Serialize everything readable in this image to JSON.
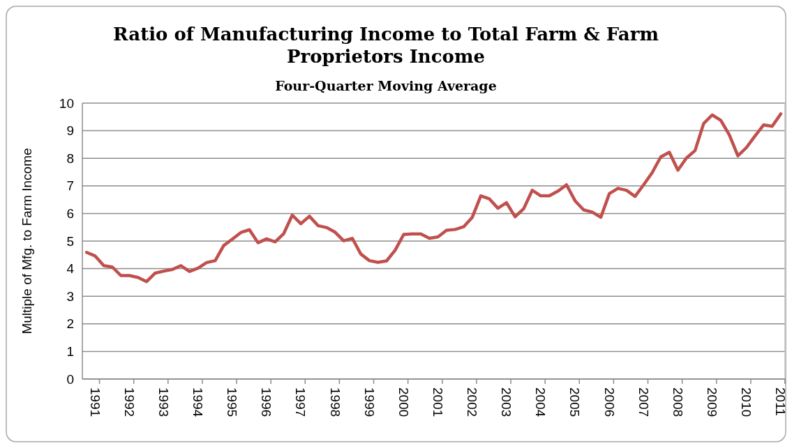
{
  "chart_data": {
    "type": "line",
    "title": "Ratio of Manufacturing Income to Total Farm & Farm Proprietors Income",
    "subtitle": "Four-Quarter Moving Average",
    "ylabel": "Multiple of Mfg. to Farm Income",
    "categories": [
      null,
      "1991",
      null,
      null,
      null,
      "1992",
      null,
      null,
      null,
      "1993",
      null,
      null,
      null,
      "1994",
      null,
      null,
      null,
      "1995",
      null,
      null,
      null,
      "1996",
      null,
      null,
      null,
      "1997",
      null,
      null,
      null,
      "1998",
      null,
      null,
      null,
      "1999",
      null,
      null,
      null,
      "2000",
      null,
      null,
      null,
      "2001",
      null,
      null,
      null,
      "2002",
      null,
      null,
      null,
      "2003",
      null,
      null,
      null,
      "2004",
      null,
      null,
      null,
      "2005",
      null,
      null,
      null,
      "2006",
      null,
      null,
      null,
      "2007",
      null,
      null,
      null,
      "2008",
      null,
      null,
      null,
      "2009",
      null,
      null,
      null,
      "2010",
      null,
      null,
      null,
      "2011"
    ],
    "series": [
      {
        "color": "#c0504d",
        "values": [
          4.59,
          4.46,
          4.11,
          4.06,
          3.75,
          3.75,
          3.68,
          3.53,
          3.84,
          3.91,
          3.97,
          4.11,
          3.9,
          4.02,
          4.22,
          4.29,
          4.84,
          5.07,
          5.31,
          5.41,
          4.94,
          5.08,
          4.97,
          5.27,
          5.94,
          5.63,
          5.9,
          5.56,
          5.49,
          5.32,
          5.01,
          5.1,
          4.53,
          4.29,
          4.23,
          4.28,
          4.67,
          5.24,
          5.26,
          5.26,
          5.1,
          5.15,
          5.39,
          5.42,
          5.52,
          5.86,
          6.64,
          6.53,
          6.19,
          6.39,
          5.88,
          6.17,
          6.84,
          6.64,
          6.64,
          6.81,
          7.04,
          6.46,
          6.13,
          6.05,
          5.86,
          6.72,
          6.91,
          6.84,
          6.62,
          7.04,
          7.48,
          8.05,
          8.22,
          7.57,
          8.01,
          8.28,
          9.26,
          9.57,
          9.38,
          8.85,
          8.09,
          8.39,
          8.81,
          9.21,
          9.16,
          9.61
        ]
      }
    ],
    "ylim": [
      0,
      10
    ],
    "yticks": [
      0,
      1,
      2,
      3,
      4,
      5,
      6,
      7,
      8,
      9,
      10
    ],
    "grid": "y",
    "marker": "none",
    "line_style": "solid"
  }
}
